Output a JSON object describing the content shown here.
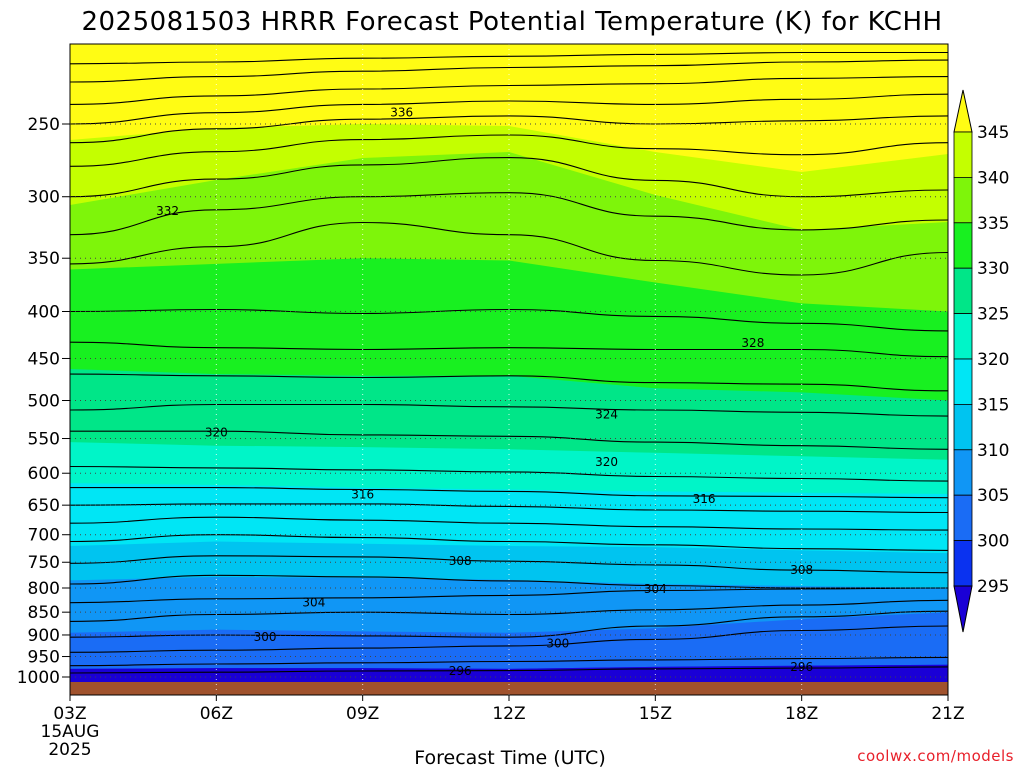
{
  "chart_data": {
    "type": "heatmap",
    "title": "2025081503 HRRR Forecast Potential Temperature (K) for KCHH",
    "xlabel": "Forecast Time (UTC)",
    "ylabel": "",
    "credit": "coolwx.com/models",
    "x_ticks": [
      "03Z",
      "06Z",
      "09Z",
      "12Z",
      "15Z",
      "18Z",
      "21Z"
    ],
    "x_first_tick_sub": [
      "15AUG",
      "2025"
    ],
    "x_hours": [
      3,
      6,
      9,
      12,
      15,
      18,
      21
    ],
    "xlim": [
      3,
      21
    ],
    "y_ticks": [
      250,
      300,
      350,
      400,
      450,
      500,
      550,
      600,
      650,
      700,
      750,
      800,
      850,
      900,
      950,
      1000
    ],
    "y_tick_labels": [
      "250",
      "300",
      "350",
      "400",
      "450",
      "500",
      "550",
      "600",
      "650",
      "700",
      "750",
      "800",
      "850",
      "900",
      "950",
      "1000"
    ],
    "ylim": [
      1025,
      200
    ],
    "y_scale": "log",
    "grid": true,
    "colorbar": {
      "levels": [
        295,
        300,
        305,
        310,
        315,
        320,
        325,
        330,
        335,
        340,
        345
      ],
      "labels": [
        "295",
        "300",
        "305",
        "310",
        "315",
        "320",
        "325",
        "330",
        "335",
        "340",
        "345"
      ],
      "colors": [
        "#1a00d6",
        "#0a32f0",
        "#1a6cf5",
        "#1096f5",
        "#00c4f0",
        "#00e6f5",
        "#00f5c8",
        "#00e688",
        "#18f020",
        "#7ef50a",
        "#c4ff00",
        "#fffc14"
      ],
      "extend": "both"
    },
    "contour_labels": [
      {
        "value": "336",
        "hour": 9.8,
        "p": 243
      },
      {
        "value": "332",
        "hour": 5.0,
        "p": 311
      },
      {
        "value": "328",
        "hour": 17.0,
        "p": 433
      },
      {
        "value": "324",
        "hour": 14.0,
        "p": 518
      },
      {
        "value": "320",
        "hour": 6.0,
        "p": 542
      },
      {
        "value": "320",
        "hour": 14.0,
        "p": 583
      },
      {
        "value": "316",
        "hour": 9.0,
        "p": 633
      },
      {
        "value": "316",
        "hour": 16.0,
        "p": 640
      },
      {
        "value": "308",
        "hour": 11.0,
        "p": 748
      },
      {
        "value": "308",
        "hour": 18.0,
        "p": 765
      },
      {
        "value": "304",
        "hour": 8.0,
        "p": 830
      },
      {
        "value": "304",
        "hour": 15.0,
        "p": 802
      },
      {
        "value": "300",
        "hour": 7.0,
        "p": 905
      },
      {
        "value": "300",
        "hour": 13.0,
        "p": 920
      },
      {
        "value": "296",
        "hour": 11.0,
        "p": 985
      },
      {
        "value": "296",
        "hour": 18.0,
        "p": 975
      }
    ],
    "ground_color": "#a0522d"
  }
}
